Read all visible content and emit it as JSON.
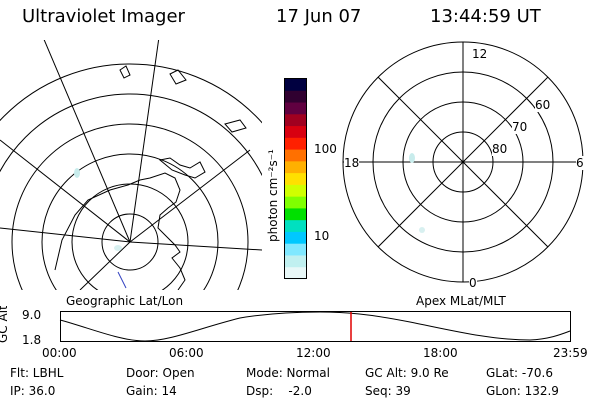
{
  "header": {
    "instrument": "Ultraviolet Imager",
    "date": "17 Jun 07",
    "time": "13:44:59 UT"
  },
  "colorbar": {
    "unit_label": "photon cm⁻²s⁻¹",
    "ticks": [
      "100",
      "10"
    ],
    "colors": [
      "#000040",
      "#300030",
      "#600040",
      "#a00020",
      "#d80010",
      "#ff2000",
      "#ff7000",
      "#ffb000",
      "#ffe000",
      "#d0ff00",
      "#80ff00",
      "#00e000",
      "#00e0c0",
      "#00c8ff",
      "#80e8ff",
      "#c0f0f0",
      "#e8f8f8"
    ]
  },
  "left_panel": {
    "label": "Geographic Lat/Lon"
  },
  "right_panel": {
    "label": "Apex MLat/MLT",
    "mlt_labels": {
      "top": "12",
      "left": "18",
      "right": "6",
      "bottom": "0"
    },
    "lat_labels": [
      "60",
      "70",
      "80"
    ]
  },
  "altitude_plot": {
    "ylabel": "GC Alt",
    "yticks": [
      "9.0",
      "1.8"
    ],
    "xticks": [
      "00:00",
      "06:00",
      "12:00",
      "18:00",
      "23:59"
    ],
    "current_marker_color": "#e00000"
  },
  "info": {
    "flt": "Flt: LBHL",
    "ip": "IP: 36.0",
    "door": "Door: Open",
    "gain": "Gain: 14",
    "mode": "Mode: Normal",
    "dsp": "Dsp:    -2.0",
    "gcalt": "GC Alt: 9.0 Re",
    "seq": "Seq: 39",
    "glat": "GLat: -70.6",
    "glon": "GLon: 132.9"
  }
}
